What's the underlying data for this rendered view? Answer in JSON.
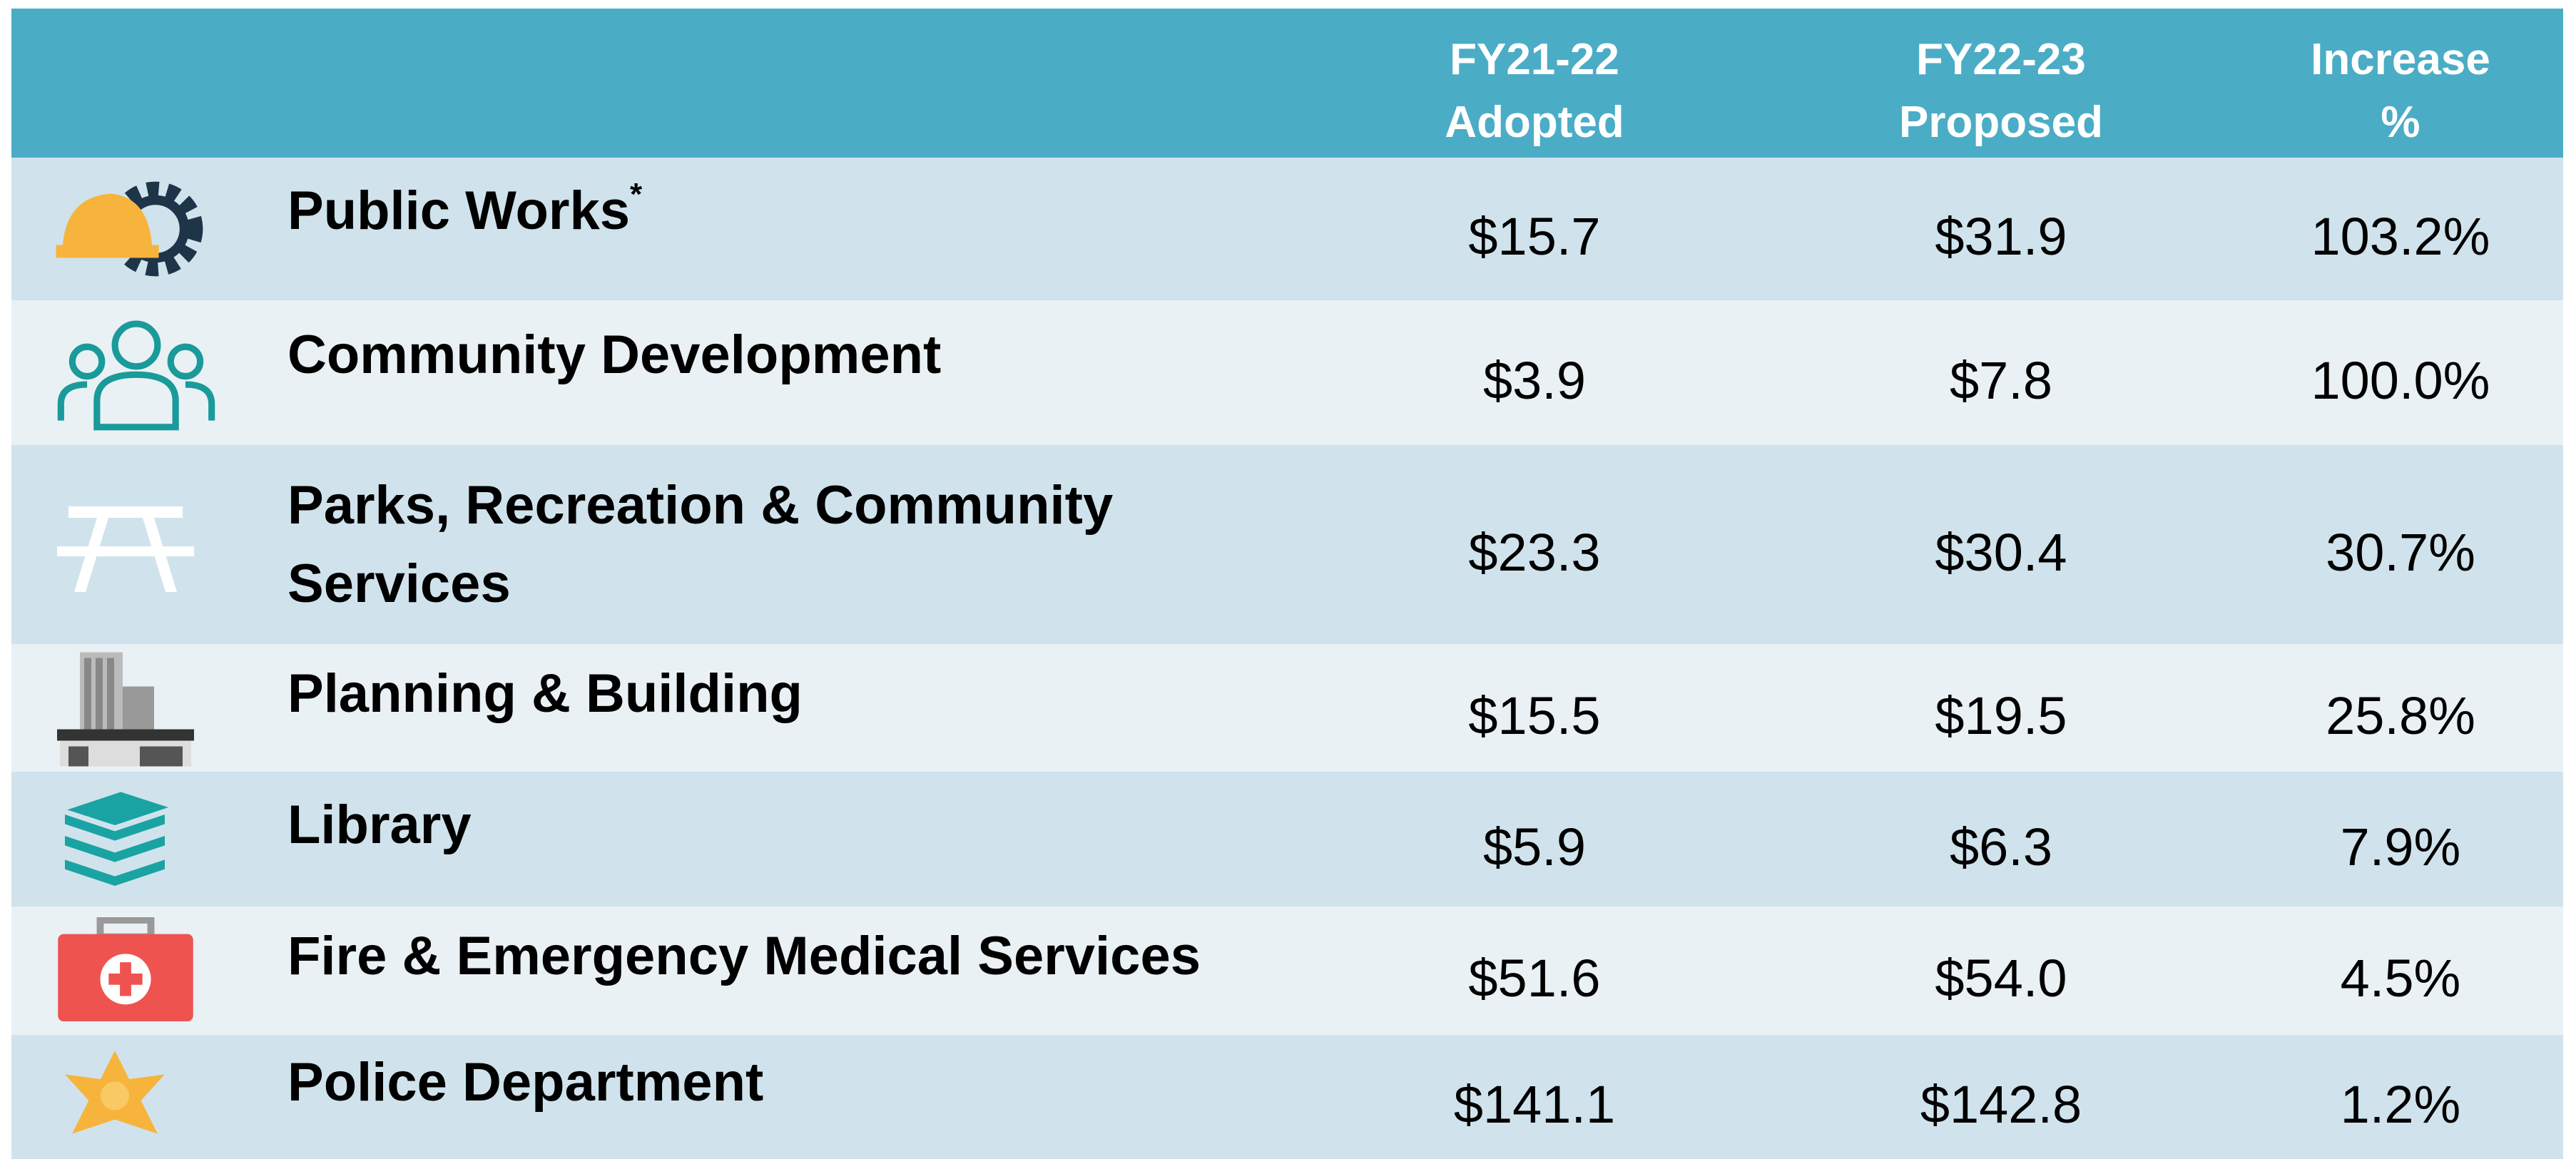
{
  "table": {
    "columns": [
      [
        "FY21-22",
        "Adopted"
      ],
      [
        "FY22-23",
        "Proposed"
      ],
      [
        "Increase",
        "%"
      ]
    ],
    "rows": [
      {
        "name": "Public Works",
        "mark": "*",
        "cells": [
          "$15.7",
          "$31.9",
          "103.2%"
        ]
      },
      {
        "name": "Community Development",
        "cells": [
          "$3.9",
          "$7.8",
          "100.0%"
        ]
      },
      {
        "name": "Parks, Recreation & Community Services",
        "cells": [
          "$23.3",
          "$30.4",
          "30.7%"
        ]
      },
      {
        "name": "Planning & Building",
        "cells": [
          "$15.5",
          "$19.5",
          "25.8%"
        ]
      },
      {
        "name": "Library",
        "cells": [
          "$5.9",
          "$6.3",
          "7.9%"
        ]
      },
      {
        "name": "Fire & Emergency Medical Services",
        "cells": [
          "$51.6",
          "$54.0",
          "4.5%"
        ]
      },
      {
        "name": "Police Department",
        "cells": [
          "$141.1",
          "$142.8",
          "1.2%"
        ]
      }
    ]
  }
}
